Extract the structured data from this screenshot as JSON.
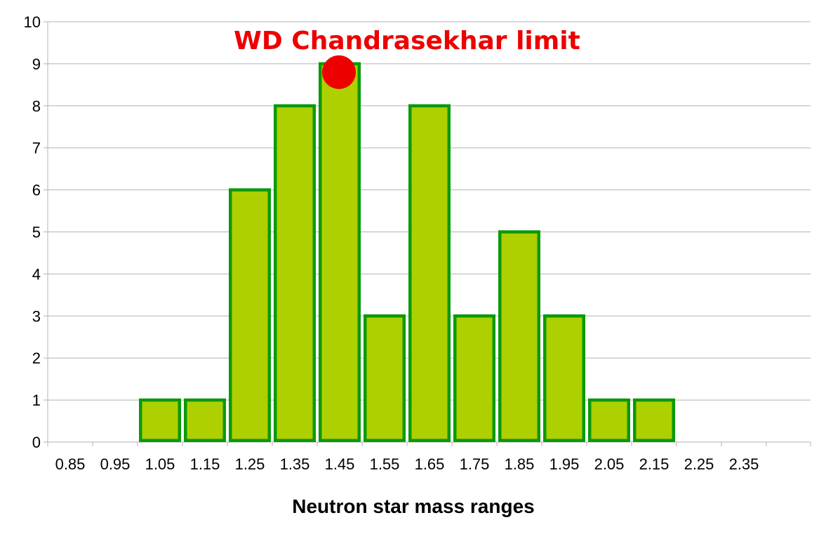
{
  "chart_data": {
    "type": "bar",
    "title": "",
    "xlabel": "Neutron star mass ranges",
    "ylabel": "",
    "categories": [
      "0.85",
      "0.95",
      "1.05",
      "1.15",
      "1.25",
      "1.35",
      "1.45",
      "1.55",
      "1.65",
      "1.75",
      "1.85",
      "1.95",
      "2.05",
      "2.15",
      "2.25",
      "2.35"
    ],
    "values": [
      0,
      0,
      1,
      1,
      6,
      8,
      9,
      3,
      8,
      3,
      5,
      3,
      1,
      1,
      0,
      0
    ],
    "ylim": [
      0,
      10
    ],
    "yticks": [
      "0",
      "1",
      "2",
      "3",
      "4",
      "5",
      "6",
      "7",
      "8",
      "9",
      "10"
    ],
    "grid": true,
    "legend": "none",
    "annotation": {
      "text": "WD Chandrasekhar limit",
      "marker_category": "1.45",
      "marker_value": 8.8
    },
    "colors": {
      "bar_fill": "#aed000",
      "bar_stroke": "#0a9a0a",
      "gridline": "#b3b3b3",
      "annotation": "#ee0000"
    }
  }
}
